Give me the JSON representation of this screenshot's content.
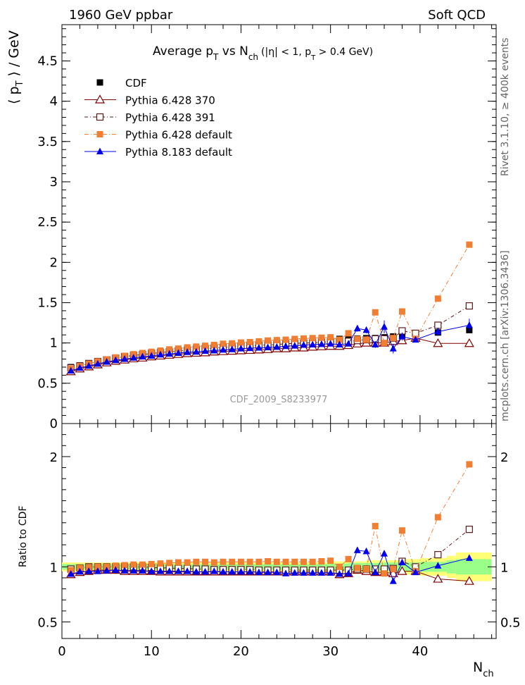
{
  "header": {
    "left": "1960 GeV ppbar",
    "right": "Soft QCD"
  },
  "title": {
    "main": "Average p",
    "sub_T": "T",
    "vs": " vs N",
    "sub_ch": "ch",
    "cuts": "(|η| < 1, p",
    "cuts_T": "T",
    "cuts_end": " > 0.4 GeV)"
  },
  "ylabel_top": "⟨ p_T ⟩ / GeV",
  "ylabel_bottom": "Ratio to CDF",
  "xlabel": "N",
  "xlabel_sub": "ch",
  "watermark": "CDF_2009_S8233977",
  "side_text_top": "Rivet 3.1.10, ≥ 400k events",
  "side_text_bottom": "mcplots.cern.ch [arXiv:1306.3436]",
  "colors": {
    "cdf": "#000000",
    "p370": "#800000",
    "p391": "#5a1a1a",
    "p6def": "#f07f33",
    "p8def": "#0000ee",
    "band_green": "#99ff88",
    "band_yellow": "#ffff77"
  },
  "chart_data": [
    {
      "type": "scatter",
      "name": "main",
      "xlim": [
        0,
        48.5
      ],
      "ylim": [
        0,
        4.95
      ],
      "yticks": [
        0,
        0.5,
        1,
        1.5,
        2,
        2.5,
        3,
        3.5,
        4,
        4.5
      ],
      "ytick_labels": [
        "0",
        "0.5",
        "1",
        "1.5",
        "2",
        "2.5",
        "3",
        "3.5",
        "4",
        "4.5"
      ],
      "x": [
        1,
        2,
        3,
        4,
        5,
        6,
        7,
        8,
        9,
        10,
        11,
        12,
        13,
        14,
        15,
        16,
        17,
        18,
        19,
        20,
        21,
        22,
        23,
        24,
        25,
        26,
        27,
        28,
        29,
        30,
        31,
        32,
        33,
        34,
        35,
        36,
        37,
        38,
        39.5,
        42,
        45.5
      ],
      "series": [
        {
          "name": "CDF",
          "marker": "square-filled",
          "values": [
            0.7,
            0.72,
            0.745,
            0.77,
            0.79,
            0.81,
            0.83,
            0.845,
            0.86,
            0.875,
            0.89,
            0.9,
            0.915,
            0.93,
            0.94,
            0.95,
            0.96,
            0.97,
            0.975,
            0.985,
            0.99,
            1.0,
            1.005,
            1.01,
            1.02,
            1.025,
            1.03,
            1.035,
            1.04,
            1.04,
            1.05,
            1.05,
            1.055,
            1.06,
            1.06,
            1.07,
            1.08,
            1.09,
            1.1,
            1.13,
            1.16
          ]
        },
        {
          "name": "Pythia 6.428 370",
          "marker": "triangle-open",
          "values": [
            0.645,
            0.68,
            0.705,
            0.73,
            0.755,
            0.775,
            0.79,
            0.805,
            0.815,
            0.83,
            0.84,
            0.85,
            0.86,
            0.87,
            0.875,
            0.88,
            0.89,
            0.895,
            0.9,
            0.905,
            0.91,
            0.915,
            0.92,
            0.93,
            0.93,
            0.94,
            0.94,
            0.95,
            0.955,
            0.96,
            0.96,
            0.97,
            0.99,
            1.0,
            1.0,
            1.0,
            1.02,
            1.03,
            1.06,
            0.995,
            0.995
          ]
        },
        {
          "name": "Pythia 6.428 391",
          "marker": "square-open",
          "values": [
            0.69,
            0.715,
            0.745,
            0.77,
            0.79,
            0.81,
            0.83,
            0.845,
            0.855,
            0.87,
            0.88,
            0.89,
            0.9,
            0.91,
            0.92,
            0.93,
            0.935,
            0.945,
            0.95,
            0.96,
            0.965,
            0.97,
            0.975,
            0.98,
            0.99,
            0.995,
            1.0,
            1.0,
            1.01,
            1.015,
            1.02,
            1.02,
            1.03,
            1.04,
            1.05,
            1.05,
            1.06,
            1.15,
            1.12,
            1.22,
            1.46
          ]
        },
        {
          "name": "Pythia 6.428 default",
          "marker": "square-filled",
          "values": [
            0.68,
            0.71,
            0.74,
            0.77,
            0.795,
            0.82,
            0.84,
            0.86,
            0.875,
            0.89,
            0.905,
            0.92,
            0.93,
            0.945,
            0.955,
            0.965,
            0.975,
            0.99,
            0.995,
            1.005,
            1.01,
            1.02,
            1.03,
            1.035,
            1.04,
            1.05,
            1.055,
            1.06,
            1.065,
            1.07,
            1.04,
            1.12,
            1.05,
            1.04,
            1.38,
            1.0,
            1.06,
            1.39,
            1.05,
            1.55,
            2.22
          ]
        },
        {
          "name": "Pythia 8.183 default",
          "marker": "triangle-filled",
          "values": [
            0.655,
            0.69,
            0.715,
            0.74,
            0.765,
            0.785,
            0.8,
            0.815,
            0.83,
            0.84,
            0.855,
            0.865,
            0.875,
            0.885,
            0.89,
            0.9,
            0.905,
            0.915,
            0.92,
            0.93,
            0.935,
            0.94,
            0.945,
            0.95,
            0.96,
            0.965,
            0.975,
            0.98,
            0.985,
            0.99,
            0.98,
            0.99,
            1.18,
            1.16,
            0.98,
            1.2,
            0.93,
            1.08,
            1.04,
            1.14,
            1.22
          ],
          "errors": [
            0,
            0,
            0,
            0,
            0,
            0,
            0,
            0,
            0,
            0,
            0,
            0,
            0,
            0,
            0,
            0,
            0,
            0,
            0,
            0,
            0,
            0,
            0,
            0,
            0,
            0,
            0,
            0,
            0,
            0,
            0,
            0,
            0.04,
            0.04,
            0.04,
            0.08,
            0.06,
            0.05,
            0.03,
            0.05,
            0.08
          ]
        }
      ]
    },
    {
      "type": "scatter",
      "name": "ratio",
      "xlim": [
        0,
        48.5
      ],
      "ylim": [
        0.35,
        2.3
      ],
      "xticks": [
        0,
        10,
        20,
        30,
        40
      ],
      "xtick_labels": [
        "0",
        "10",
        "20",
        "30",
        "40"
      ],
      "yticks": [
        0.5,
        1,
        2
      ],
      "ytick_labels": [
        "0.5",
        "1",
        "2"
      ],
      "x": [
        1,
        2,
        3,
        4,
        5,
        6,
        7,
        8,
        9,
        10,
        11,
        12,
        13,
        14,
        15,
        16,
        17,
        18,
        19,
        20,
        21,
        22,
        23,
        24,
        25,
        26,
        27,
        28,
        29,
        30,
        31,
        32,
        33,
        34,
        35,
        36,
        37,
        38,
        39.5,
        42,
        45.5
      ],
      "series": [
        {
          "name": "Pythia 6.428 370",
          "values": [
            0.93,
            0.95,
            0.96,
            0.97,
            0.97,
            0.97,
            0.96,
            0.96,
            0.96,
            0.96,
            0.955,
            0.955,
            0.955,
            0.955,
            0.955,
            0.955,
            0.955,
            0.955,
            0.955,
            0.955,
            0.955,
            0.955,
            0.955,
            0.955,
            0.955,
            0.955,
            0.955,
            0.955,
            0.955,
            0.955,
            0.93,
            0.94,
            0.97,
            0.96,
            0.95,
            0.95,
            0.94,
            0.96,
            0.96,
            0.89,
            0.87
          ]
        },
        {
          "name": "Pythia 6.428 391",
          "values": [
            0.98,
            0.99,
            1.0,
            1.0,
            1.0,
            1.0,
            1.0,
            1.0,
            1.0,
            0.995,
            0.99,
            0.99,
            0.985,
            0.985,
            0.98,
            0.98,
            0.975,
            0.975,
            0.975,
            0.975,
            0.975,
            0.97,
            0.97,
            0.97,
            0.97,
            0.97,
            0.97,
            0.97,
            0.97,
            0.97,
            0.97,
            0.97,
            0.98,
            0.98,
            0.98,
            0.98,
            0.985,
            1.05,
            1.0,
            1.11,
            1.34
          ]
        },
        {
          "name": "Pythia 6.428 default",
          "values": [
            0.97,
            0.99,
            0.995,
            1.0,
            1.0,
            1.01,
            1.015,
            1.02,
            1.02,
            1.025,
            1.03,
            1.035,
            1.04,
            1.04,
            1.045,
            1.045,
            1.04,
            1.045,
            1.045,
            1.045,
            1.045,
            1.045,
            1.05,
            1.045,
            1.045,
            1.045,
            1.045,
            1.045,
            1.05,
            1.055,
            1.0,
            1.07,
            0.99,
            0.98,
            1.37,
            0.94,
            0.98,
            1.33,
            0.96,
            1.45,
            1.93
          ]
        },
        {
          "name": "Pythia 8.183 default",
          "values": [
            0.935,
            0.955,
            0.96,
            0.96,
            0.965,
            0.97,
            0.965,
            0.965,
            0.965,
            0.96,
            0.96,
            0.96,
            0.96,
            0.96,
            0.955,
            0.955,
            0.96,
            0.955,
            0.955,
            0.955,
            0.955,
            0.95,
            0.95,
            0.95,
            0.94,
            0.945,
            0.945,
            0.945,
            0.945,
            0.945,
            0.935,
            0.94,
            1.15,
            1.14,
            0.95,
            1.12,
            0.87,
            1.04,
            0.95,
            1.01,
            1.08
          ]
        }
      ],
      "band": {
        "x_edges": [
          0,
          30,
          31,
          32,
          33,
          34,
          35,
          36,
          37,
          38,
          39,
          40,
          41,
          43,
          44,
          48
        ],
        "green_half": [
          0.025,
          0.03,
          0.03,
          0.035,
          0.035,
          0.035,
          0.035,
          0.04,
          0.04,
          0.04,
          0.04,
          0.045,
          0.045,
          0.06,
          0.07
        ],
        "yellow_half": [
          0.04,
          0.05,
          0.05,
          0.05,
          0.05,
          0.06,
          0.06,
          0.06,
          0.06,
          0.07,
          0.07,
          0.08,
          0.08,
          0.1,
          0.13
        ]
      }
    }
  ]
}
